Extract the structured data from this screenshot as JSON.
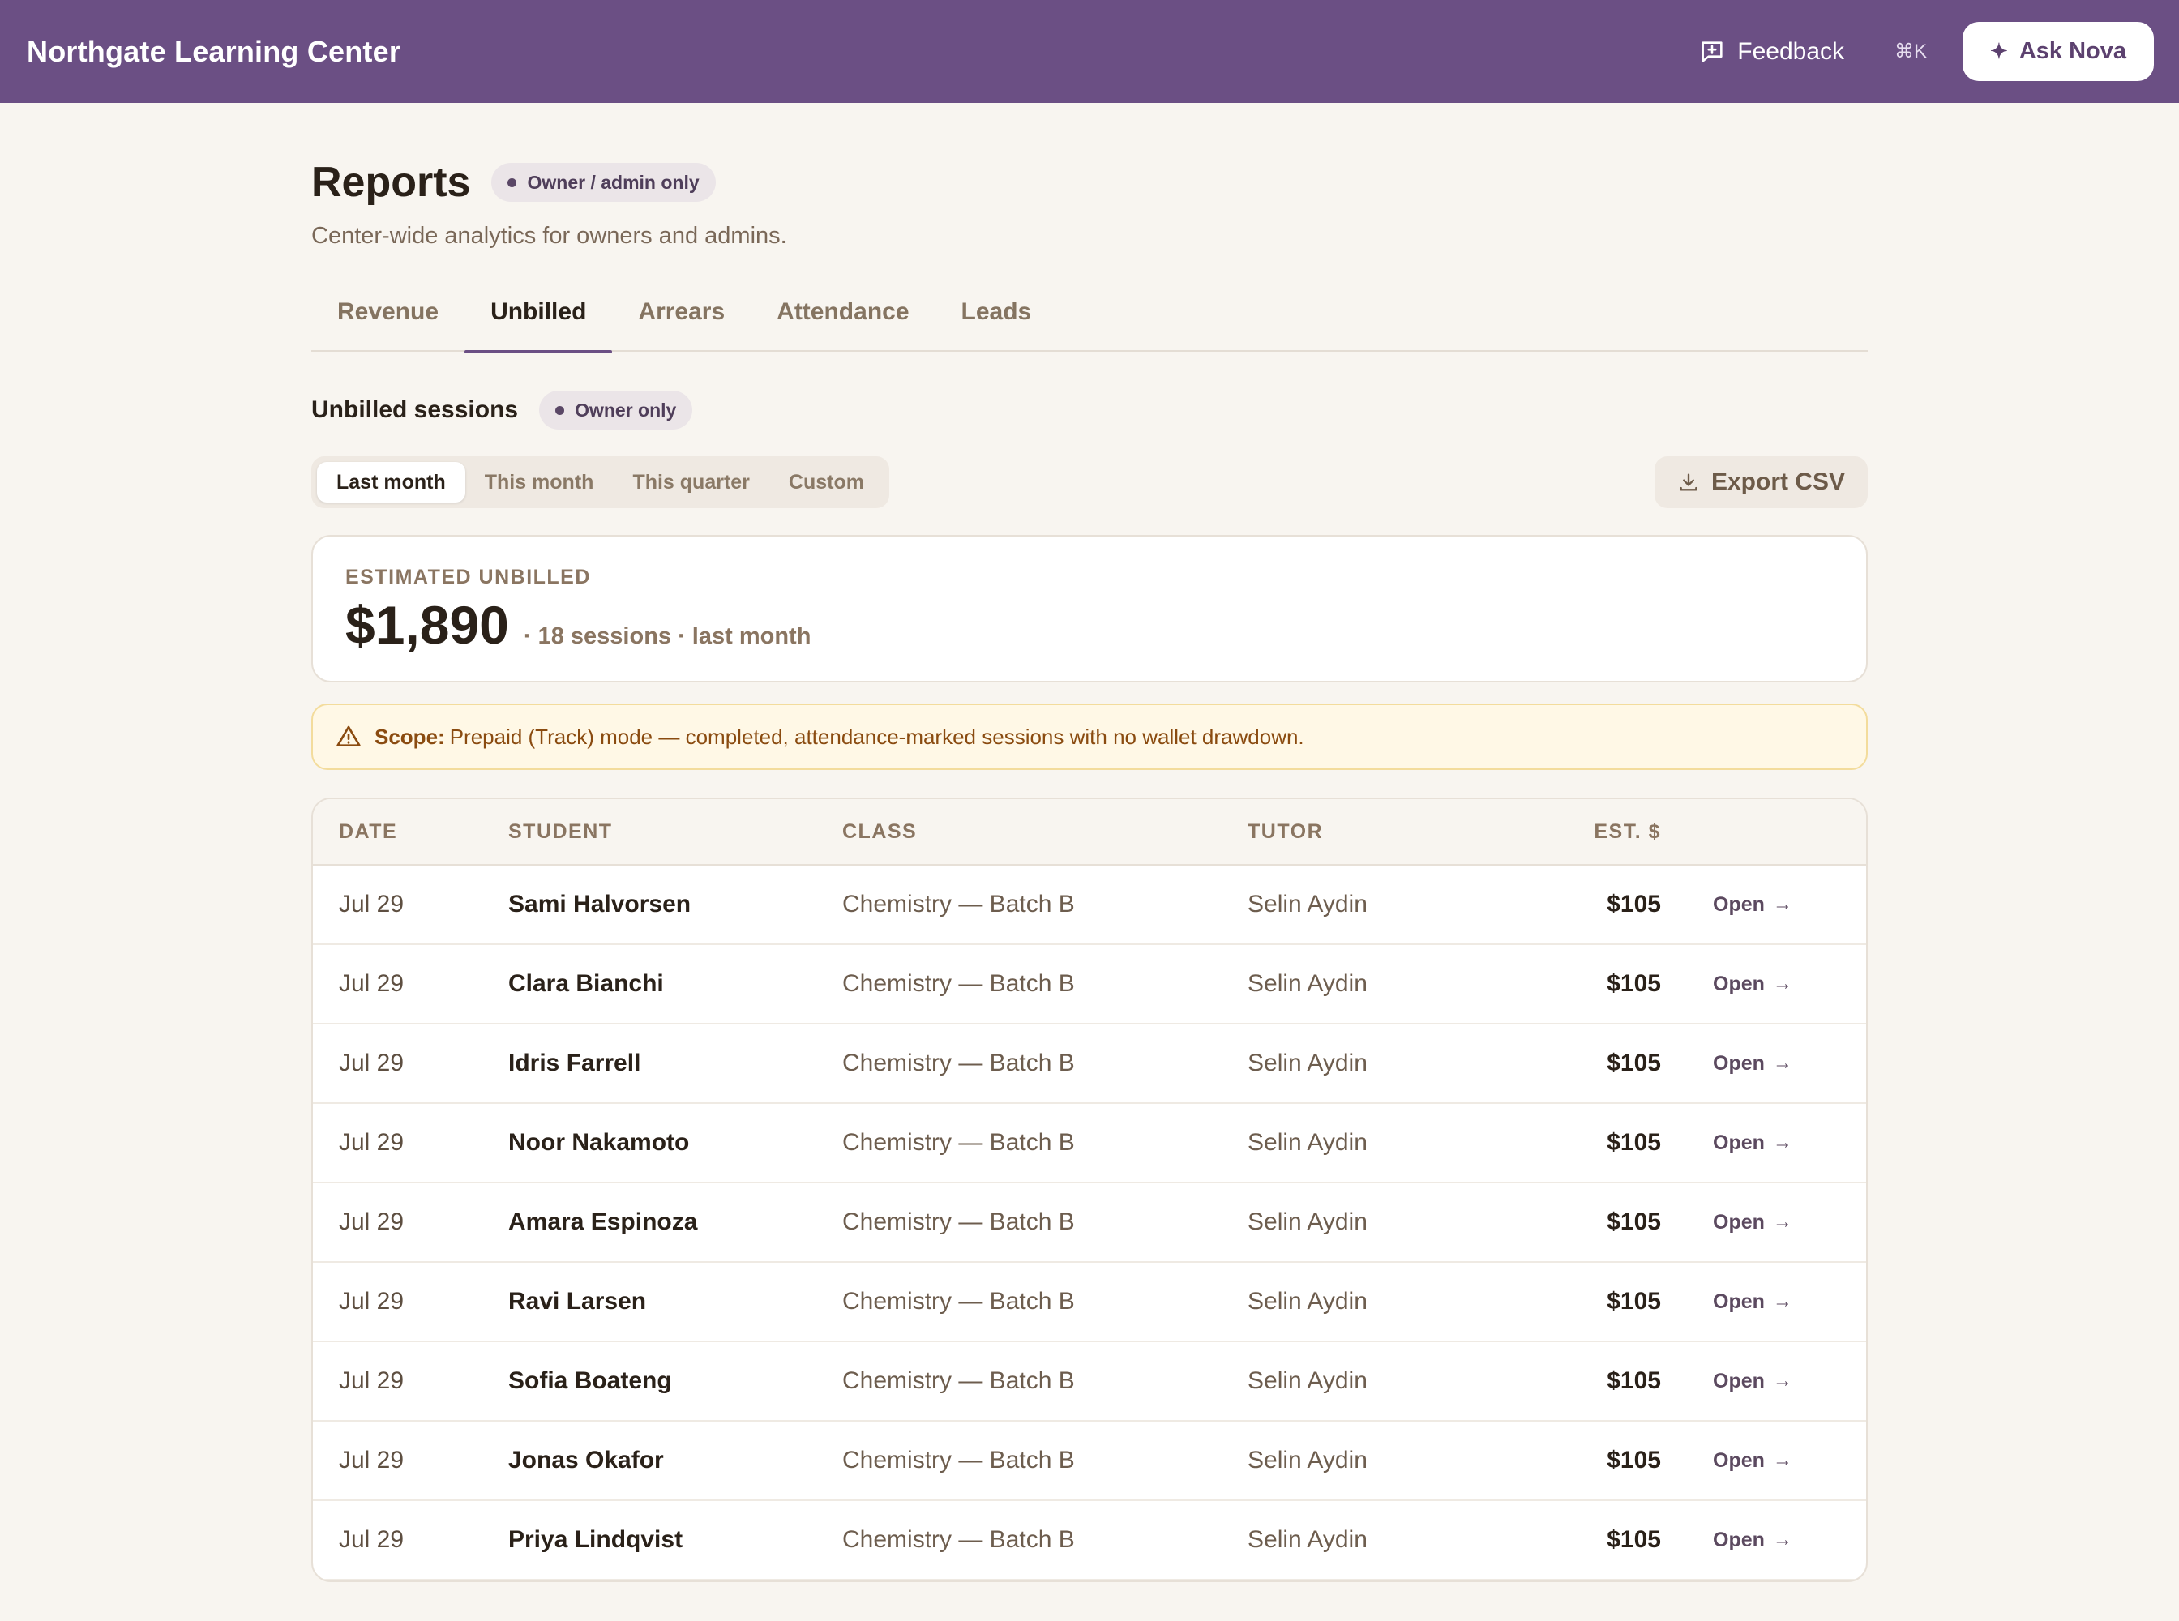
{
  "app": {
    "brand": "Northgate Learning Center",
    "feedback_label": "Feedback",
    "shortcut": "⌘K",
    "ask_label": "Ask Nova"
  },
  "page": {
    "title": "Reports",
    "badge": "Owner / admin only",
    "subtitle": "Center-wide analytics for owners and admins."
  },
  "tabs": [
    {
      "label": "Revenue",
      "active": false
    },
    {
      "label": "Unbilled",
      "active": true
    },
    {
      "label": "Arrears",
      "active": false
    },
    {
      "label": "Attendance",
      "active": false
    },
    {
      "label": "Leads",
      "active": false
    }
  ],
  "section": {
    "title": "Unbilled sessions",
    "badge": "Owner only"
  },
  "ranges": [
    {
      "label": "Last month",
      "active": true
    },
    {
      "label": "This month",
      "active": false
    },
    {
      "label": "This quarter",
      "active": false
    },
    {
      "label": "Custom",
      "active": false
    }
  ],
  "export_label": "Export CSV",
  "summary": {
    "label": "ESTIMATED UNBILLED",
    "amount": "$1,890",
    "meta": "· 18 sessions · last month"
  },
  "scope": {
    "label": "Scope:",
    "text": "Prepaid (Track) mode — completed, attendance-marked sessions with no wallet drawdown."
  },
  "table": {
    "headers": {
      "date": "DATE",
      "student": "STUDENT",
      "class": "CLASS",
      "tutor": "TUTOR",
      "est": "EST. $"
    },
    "open_label": "Open",
    "rows": [
      {
        "date": "Jul 29",
        "student": "Sami Halvorsen",
        "class": "Chemistry — Batch B",
        "tutor": "Selin Aydin",
        "est": "$105"
      },
      {
        "date": "Jul 29",
        "student": "Clara Bianchi",
        "class": "Chemistry — Batch B",
        "tutor": "Selin Aydin",
        "est": "$105"
      },
      {
        "date": "Jul 29",
        "student": "Idris Farrell",
        "class": "Chemistry — Batch B",
        "tutor": "Selin Aydin",
        "est": "$105"
      },
      {
        "date": "Jul 29",
        "student": "Noor Nakamoto",
        "class": "Chemistry — Batch B",
        "tutor": "Selin Aydin",
        "est": "$105"
      },
      {
        "date": "Jul 29",
        "student": "Amara Espinoza",
        "class": "Chemistry — Batch B",
        "tutor": "Selin Aydin",
        "est": "$105"
      },
      {
        "date": "Jul 29",
        "student": "Ravi Larsen",
        "class": "Chemistry — Batch B",
        "tutor": "Selin Aydin",
        "est": "$105"
      },
      {
        "date": "Jul 29",
        "student": "Sofia Boateng",
        "class": "Chemistry — Batch B",
        "tutor": "Selin Aydin",
        "est": "$105"
      },
      {
        "date": "Jul 29",
        "student": "Jonas Okafor",
        "class": "Chemistry — Batch B",
        "tutor": "Selin Aydin",
        "est": "$105"
      },
      {
        "date": "Jul 29",
        "student": "Priya Lindqvist",
        "class": "Chemistry — Batch B",
        "tutor": "Selin Aydin",
        "est": "$105"
      }
    ]
  }
}
